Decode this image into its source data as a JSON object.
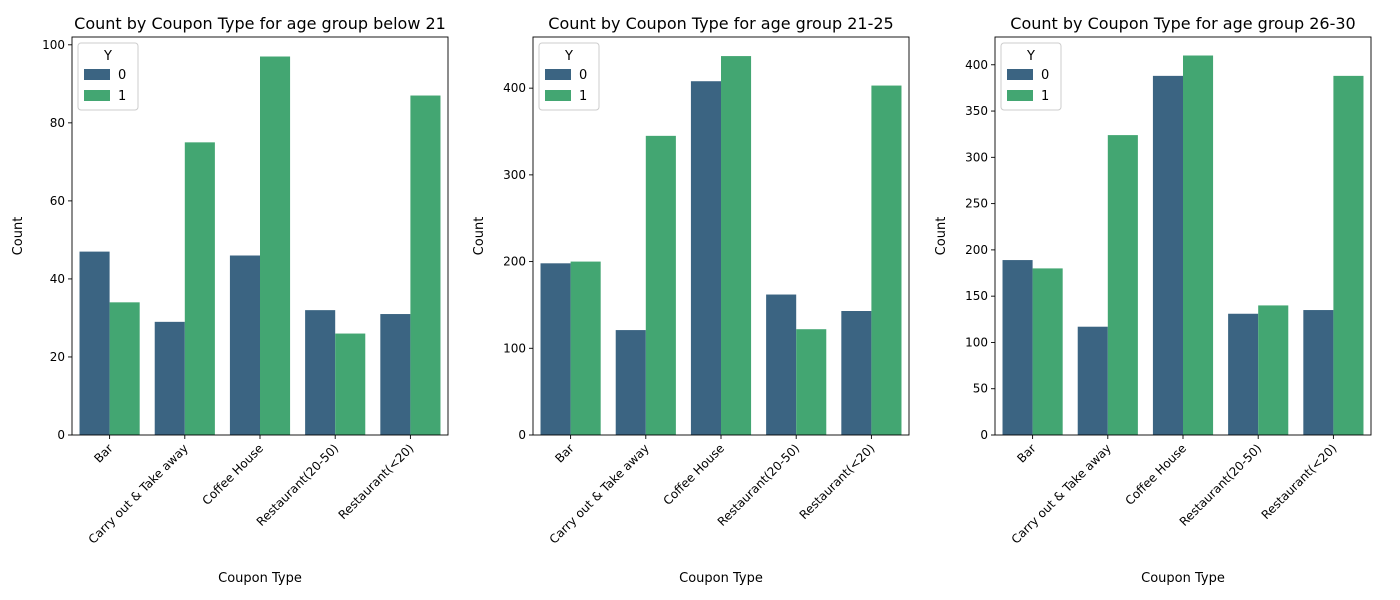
{
  "chart_data": [
    {
      "type": "bar",
      "title": "Count by Coupon Type for age group below 21",
      "xlabel": "Coupon Type",
      "ylabel": "Count",
      "categories": [
        "Bar",
        "Carry out & Take away",
        "Coffee House",
        "Restaurant(20-50)",
        "Restaurant(<20)"
      ],
      "ylim": [
        0,
        102
      ],
      "yticks": [
        0,
        20,
        40,
        60,
        80,
        100
      ],
      "legend": {
        "title": "Y",
        "placement": "top-left"
      },
      "series": [
        {
          "name": "0",
          "color": "#3b6482",
          "values": [
            47,
            29,
            46,
            32,
            31
          ]
        },
        {
          "name": "1",
          "color": "#43a672",
          "values": [
            34,
            75,
            97,
            26,
            87
          ]
        }
      ]
    },
    {
      "type": "bar",
      "title": "Count by Coupon Type for age group 21-25",
      "xlabel": "Coupon Type",
      "ylabel": "Count",
      "categories": [
        "Bar",
        "Carry out & Take away",
        "Coffee House",
        "Restaurant(20-50)",
        "Restaurant(<20)"
      ],
      "ylim": [
        0,
        459
      ],
      "yticks": [
        0,
        100,
        200,
        300,
        400
      ],
      "legend": {
        "title": "Y",
        "placement": "top-left"
      },
      "series": [
        {
          "name": "0",
          "color": "#3b6482",
          "values": [
            198,
            121,
            408,
            162,
            143
          ]
        },
        {
          "name": "1",
          "color": "#43a672",
          "values": [
            200,
            345,
            437,
            122,
            403
          ]
        }
      ]
    },
    {
      "type": "bar",
      "title": "Count by Coupon Type for age group 26-30",
      "xlabel": "Coupon Type",
      "ylabel": "Count",
      "categories": [
        "Bar",
        "Carry out & Take away",
        "Coffee House",
        "Restaurant(20-50)",
        "Restaurant(<20)"
      ],
      "ylim": [
        0,
        430
      ],
      "yticks": [
        0,
        50,
        100,
        150,
        200,
        250,
        300,
        350,
        400
      ],
      "legend": {
        "title": "Y",
        "placement": "top-left"
      },
      "series": [
        {
          "name": "0",
          "color": "#3b6482",
          "values": [
            189,
            117,
            388,
            131,
            135
          ]
        },
        {
          "name": "1",
          "color": "#43a672",
          "values": [
            180,
            324,
            410,
            140,
            388
          ]
        }
      ]
    }
  ]
}
